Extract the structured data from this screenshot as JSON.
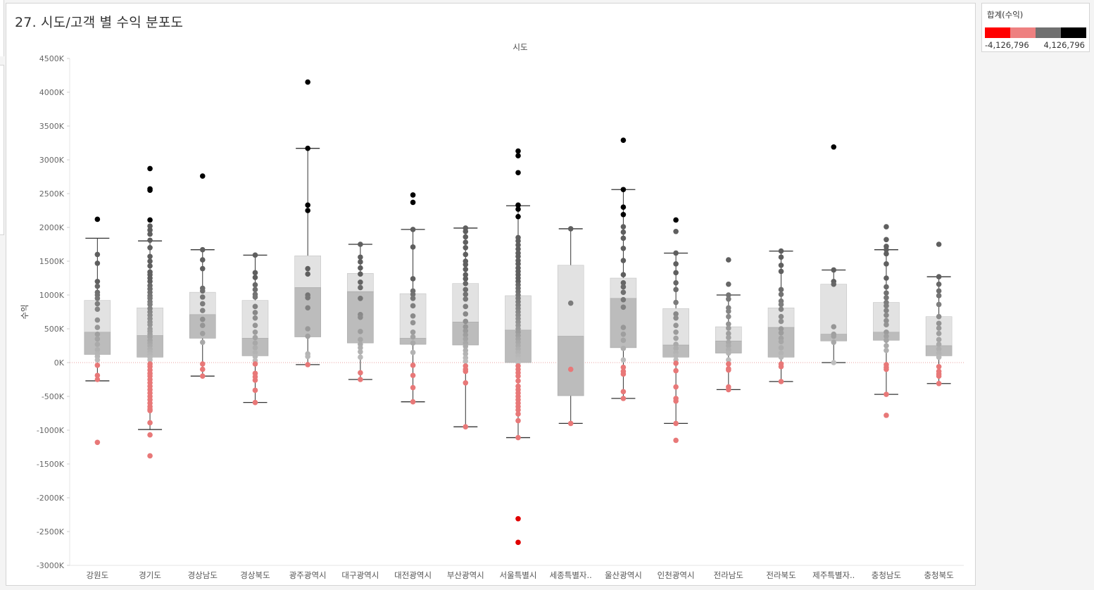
{
  "title": "27. 시도/고객 별 수익 분포도",
  "legend": {
    "title": "합계(수익)",
    "min_label": "-4,126,796",
    "max_label": "4,126,796",
    "colors": [
      "#ff0000",
      "#ee8080",
      "#707070",
      "#000000"
    ]
  },
  "chart_data": {
    "type": "box-and-whisker with jittered dots",
    "column_header": "시도",
    "ylabel": "수익",
    "ylim": [
      -3000000,
      4500000
    ],
    "y_ticks": [
      {
        "value": 4500000,
        "label": "4500K"
      },
      {
        "value": 4000000,
        "label": "4000K"
      },
      {
        "value": 3500000,
        "label": "3500K"
      },
      {
        "value": 3000000,
        "label": "3000K"
      },
      {
        "value": 2500000,
        "label": "2500K"
      },
      {
        "value": 2000000,
        "label": "2000K"
      },
      {
        "value": 1500000,
        "label": "1500K"
      },
      {
        "value": 1000000,
        "label": "1000K"
      },
      {
        "value": 500000,
        "label": "500K"
      },
      {
        "value": 0,
        "label": "0K"
      },
      {
        "value": -500000,
        "label": "-500K"
      },
      {
        "value": -1000000,
        "label": "-1000K"
      },
      {
        "value": -1500000,
        "label": "-1500K"
      },
      {
        "value": -2000000,
        "label": "-2000K"
      },
      {
        "value": -2500000,
        "label": "-2500K"
      },
      {
        "value": -3000000,
        "label": "-3000K"
      }
    ],
    "categories": [
      {
        "name": "강원도",
        "whisker_low": -270000,
        "q1": 120000,
        "median": 450000,
        "q3": 920000,
        "whisker_high": 1840000,
        "points": [
          2120000,
          1600000,
          1470000,
          1200000,
          1130000,
          1040000,
          1000000,
          950000,
          870000,
          790000,
          630000,
          520000,
          420000,
          350000,
          270000,
          190000,
          130000,
          90000,
          40000,
          -40000,
          -190000,
          -250000,
          -1180000
        ]
      },
      {
        "name": "경기도",
        "whisker_low": -990000,
        "q1": 80000,
        "median": 400000,
        "q3": 810000,
        "whisker_high": 1800000,
        "points": [
          2870000,
          2570000,
          2550000,
          2110000,
          2020000,
          1960000,
          1900000,
          1810000,
          1700000,
          1570000,
          1500000,
          1430000,
          1340000,
          1300000,
          1250000,
          1200000,
          1140000,
          1090000,
          1040000,
          990000,
          950000,
          900000,
          860000,
          800000,
          750000,
          700000,
          650000,
          600000,
          560000,
          500000,
          460000,
          420000,
          380000,
          330000,
          290000,
          250000,
          200000,
          160000,
          120000,
          80000,
          40000,
          -20000,
          -60000,
          -110000,
          -160000,
          -200000,
          -250000,
          -300000,
          -350000,
          -400000,
          -450000,
          -500000,
          -550000,
          -600000,
          -650000,
          -690000,
          -710000,
          -890000,
          -1070000,
          -1380000
        ]
      },
      {
        "name": "경상남도",
        "whisker_low": -200000,
        "q1": 360000,
        "median": 710000,
        "q3": 1040000,
        "whisker_high": 1670000,
        "points": [
          2760000,
          1670000,
          1520000,
          1390000,
          1100000,
          1060000,
          970000,
          870000,
          770000,
          640000,
          550000,
          430000,
          300000,
          -20000,
          -100000,
          -200000
        ]
      },
      {
        "name": "경상북도",
        "whisker_low": -590000,
        "q1": 100000,
        "median": 360000,
        "q3": 920000,
        "whisker_high": 1590000,
        "points": [
          1590000,
          1330000,
          1260000,
          1150000,
          1080000,
          1010000,
          970000,
          830000,
          740000,
          660000,
          550000,
          450000,
          370000,
          290000,
          220000,
          150000,
          90000,
          30000,
          -20000,
          -160000,
          -210000,
          -260000,
          -410000,
          -590000
        ]
      },
      {
        "name": "광주광역시",
        "whisker_low": -30000,
        "q1": 380000,
        "median": 1110000,
        "q3": 1580000,
        "whisker_high": 3170000,
        "points": [
          4150000,
          3170000,
          2330000,
          2250000,
          1390000,
          1310000,
          1000000,
          960000,
          810000,
          500000,
          390000,
          130000,
          90000,
          -30000
        ]
      },
      {
        "name": "대구광역시",
        "whisker_low": -250000,
        "q1": 290000,
        "median": 1050000,
        "q3": 1320000,
        "whisker_high": 1750000,
        "points": [
          1750000,
          1560000,
          1490000,
          1400000,
          1310000,
          1190000,
          1110000,
          950000,
          710000,
          670000,
          460000,
          340000,
          270000,
          220000,
          160000,
          80000,
          -150000,
          -250000
        ]
      },
      {
        "name": "대전광역시",
        "whisker_low": -580000,
        "q1": 270000,
        "median": 360000,
        "q3": 1020000,
        "whisker_high": 1970000,
        "points": [
          2480000,
          2370000,
          1970000,
          1710000,
          1240000,
          1060000,
          1010000,
          950000,
          840000,
          690000,
          590000,
          450000,
          380000,
          290000,
          150000,
          -40000,
          -190000,
          -370000,
          -580000
        ]
      },
      {
        "name": "부산광역시",
        "whisker_low": -950000,
        "q1": 260000,
        "median": 600000,
        "q3": 1170000,
        "whisker_high": 1990000,
        "points": [
          1990000,
          1940000,
          1860000,
          1780000,
          1700000,
          1600000,
          1500000,
          1450000,
          1380000,
          1300000,
          1240000,
          1170000,
          1080000,
          1010000,
          940000,
          830000,
          720000,
          610000,
          530000,
          470000,
          410000,
          350000,
          290000,
          240000,
          180000,
          130000,
          70000,
          20000,
          -50000,
          -100000,
          -130000,
          -300000,
          -950000
        ]
      },
      {
        "name": "서울특별시",
        "whisker_low": -1110000,
        "q1": 0,
        "median": 480000,
        "q3": 990000,
        "whisker_high": 2320000,
        "points": [
          3130000,
          3060000,
          2810000,
          2330000,
          2270000,
          2160000,
          1850000,
          1800000,
          1740000,
          1680000,
          1620000,
          1570000,
          1510000,
          1460000,
          1400000,
          1350000,
          1300000,
          1250000,
          1200000,
          1150000,
          1100000,
          1050000,
          1000000,
          950000,
          900000,
          850000,
          800000,
          750000,
          700000,
          650000,
          600000,
          550000,
          500000,
          450000,
          400000,
          350000,
          300000,
          250000,
          200000,
          150000,
          100000,
          50000,
          0,
          -50000,
          -100000,
          -150000,
          -200000,
          -270000,
          -350000,
          -400000,
          -450000,
          -500000,
          -550000,
          -600000,
          -650000,
          -700000,
          -760000,
          -860000,
          -1110000,
          -2310000,
          -2660000
        ]
      },
      {
        "name": "세종특별자..",
        "whisker_low": -900000,
        "q1": -490000,
        "median": 390000,
        "q3": 1440000,
        "whisker_high": 1980000,
        "points": [
          1980000,
          880000,
          -100000,
          -900000
        ]
      },
      {
        "name": "울산광역시",
        "whisker_low": -530000,
        "q1": 220000,
        "median": 950000,
        "q3": 1250000,
        "whisker_high": 2560000,
        "points": [
          3290000,
          2560000,
          2300000,
          2190000,
          2010000,
          1930000,
          1840000,
          1690000,
          1510000,
          1300000,
          1180000,
          1120000,
          1040000,
          930000,
          820000,
          520000,
          420000,
          330000,
          210000,
          40000,
          -70000,
          -130000,
          -170000,
          -430000,
          -530000
        ]
      },
      {
        "name": "인천광역시",
        "whisker_low": -900000,
        "q1": 80000,
        "median": 260000,
        "q3": 800000,
        "whisker_high": 1620000,
        "points": [
          2110000,
          1940000,
          1620000,
          1460000,
          1330000,
          1180000,
          1080000,
          890000,
          720000,
          660000,
          550000,
          450000,
          360000,
          270000,
          210000,
          150000,
          100000,
          40000,
          -10000,
          -120000,
          -360000,
          -530000,
          -570000,
          -900000,
          -1150000
        ]
      },
      {
        "name": "전라남도",
        "whisker_low": -400000,
        "q1": 140000,
        "median": 320000,
        "q3": 530000,
        "whisker_high": 1000000,
        "points": [
          1520000,
          1160000,
          1000000,
          940000,
          810000,
          760000,
          680000,
          570000,
          510000,
          430000,
          370000,
          300000,
          250000,
          190000,
          140000,
          40000,
          -20000,
          -90000,
          -110000,
          -360000,
          -400000
        ]
      },
      {
        "name": "전라북도",
        "whisker_low": -280000,
        "q1": 80000,
        "median": 520000,
        "q3": 810000,
        "whisker_high": 1650000,
        "points": [
          1650000,
          1560000,
          1440000,
          1350000,
          1080000,
          1010000,
          910000,
          860000,
          790000,
          680000,
          610000,
          500000,
          440000,
          360000,
          310000,
          220000,
          140000,
          80000,
          -20000,
          -60000,
          -280000
        ]
      },
      {
        "name": "제주특별자..",
        "whisker_low": 0,
        "q1": 320000,
        "median": 420000,
        "q3": 1160000,
        "whisker_high": 1370000,
        "points": [
          3190000,
          1370000,
          1200000,
          1160000,
          530000,
          420000,
          390000,
          300000,
          0
        ]
      },
      {
        "name": "충청남도",
        "whisker_low": -470000,
        "q1": 330000,
        "median": 450000,
        "q3": 890000,
        "whisker_high": 1670000,
        "points": [
          2010000,
          1820000,
          1720000,
          1670000,
          1610000,
          1460000,
          1250000,
          1120000,
          1030000,
          960000,
          890000,
          840000,
          770000,
          700000,
          620000,
          560000,
          450000,
          390000,
          330000,
          250000,
          180000,
          -30000,
          -70000,
          -100000,
          -470000,
          -780000
        ]
      },
      {
        "name": "충청북도",
        "whisker_low": -310000,
        "q1": 100000,
        "median": 250000,
        "q3": 680000,
        "whisker_high": 1270000,
        "points": [
          1750000,
          1270000,
          1160000,
          1060000,
          990000,
          860000,
          680000,
          580000,
          510000,
          430000,
          340000,
          270000,
          200000,
          140000,
          80000,
          -60000,
          -130000,
          -170000,
          -200000,
          -310000
        ]
      }
    ]
  }
}
